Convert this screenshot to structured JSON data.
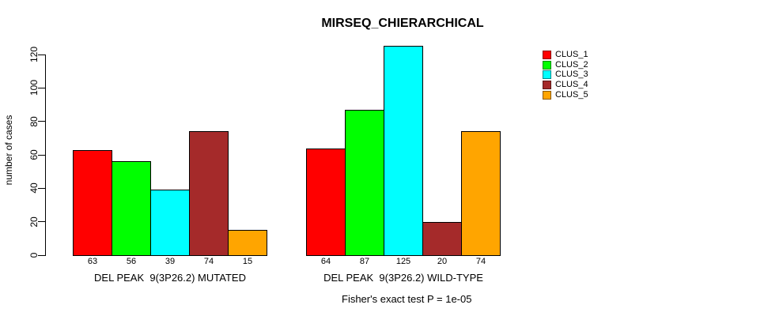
{
  "chart_data": {
    "type": "bar",
    "title": "MIRSEQ_CHIERARCHICAL",
    "ylabel": "number of cases",
    "xlabel": "",
    "ylim": [
      0,
      125
    ],
    "yticks": [
      0,
      20,
      40,
      60,
      80,
      100,
      120
    ],
    "grid": false,
    "legend_position": "top-right",
    "bar_border_color": "#000000",
    "value_labels_shown": true,
    "categories": [
      "DEL PEAK  9(3P26.2) MUTATED",
      "DEL PEAK  9(3P26.2) WILD-TYPE"
    ],
    "series": [
      {
        "name": "CLUS_1",
        "color": "#FF0000",
        "values": [
          63,
          64
        ]
      },
      {
        "name": "CLUS_2",
        "color": "#00FF00",
        "values": [
          56,
          87
        ]
      },
      {
        "name": "CLUS_3",
        "color": "#00FFFF",
        "values": [
          39,
          125
        ]
      },
      {
        "name": "CLUS_4",
        "color": "#A52A2A",
        "values": [
          74,
          20
        ]
      },
      {
        "name": "CLUS_5",
        "color": "#FFA500",
        "values": [
          15,
          74
        ]
      }
    ],
    "footnote": "Fisher's exact test P = 1e-05"
  }
}
